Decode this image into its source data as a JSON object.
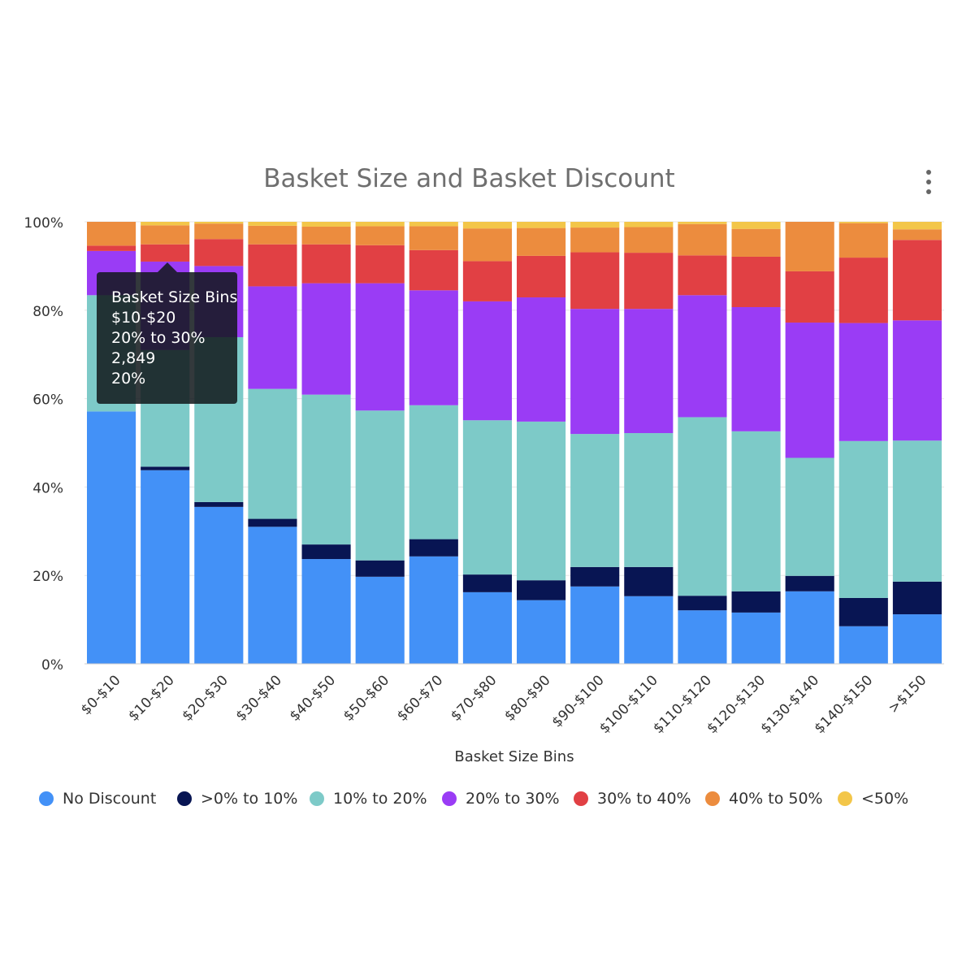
{
  "chart_data": {
    "type": "bar",
    "stacked": "percent",
    "title": "Basket Size and Basket Discount",
    "xlabel": "Basket Size Bins",
    "ylabel": "",
    "ylim": [
      0,
      100
    ],
    "y_ticks": [
      "0%",
      "20%",
      "40%",
      "60%",
      "80%",
      "100%"
    ],
    "grid": true,
    "legend_position": "bottom",
    "categories": [
      "$0-$10",
      "$10-$20",
      "$20-$30",
      "$30-$40",
      "$40-$50",
      "$50-$60",
      "$60-$70",
      "$70-$80",
      "$80-$90",
      "$90-$100",
      "$100-$110",
      "$110-$120",
      "$120-$130",
      "$130-$140",
      "$140-$150",
      ">$150"
    ],
    "series": [
      {
        "name": "No Discount",
        "color": "#4391f7",
        "values": [
          57.1,
          43.8,
          35.5,
          31.0,
          23.7,
          19.7,
          24.3,
          16.2,
          14.4,
          17.5,
          15.3,
          12.1,
          11.6,
          16.4,
          8.5,
          11.2
        ]
      },
      {
        "name": ">0% to 10%",
        "color": "#081553",
        "values": [
          0.0,
          0.8,
          1.1,
          1.8,
          3.3,
          3.7,
          3.9,
          4.0,
          4.5,
          4.4,
          6.6,
          3.3,
          4.8,
          3.5,
          6.4,
          7.4
        ]
      },
      {
        "name": "10% to 20%",
        "color": "#7dcac8",
        "values": [
          26.3,
          26.4,
          37.3,
          29.4,
          33.9,
          33.9,
          30.3,
          34.9,
          35.9,
          30.1,
          30.3,
          40.4,
          36.2,
          26.7,
          35.5,
          31.9
        ]
      },
      {
        "name": "20% to 30%",
        "color": "#9a3cf5",
        "values": [
          10.0,
          20.0,
          16.1,
          23.2,
          25.2,
          28.8,
          26.0,
          26.9,
          28.1,
          28.3,
          28.1,
          27.6,
          28.1,
          30.6,
          26.7,
          27.2
        ]
      },
      {
        "name": "30% to 40%",
        "color": "#e14044",
        "values": [
          1.2,
          3.9,
          6.1,
          9.5,
          8.8,
          8.6,
          9.1,
          9.1,
          9.4,
          12.8,
          12.7,
          9.0,
          11.4,
          11.6,
          14.8,
          18.2
        ]
      },
      {
        "name": "40% to 50%",
        "color": "#ec8c3e",
        "values": [
          5.4,
          4.3,
          3.5,
          4.2,
          4.0,
          4.3,
          5.4,
          7.4,
          6.3,
          5.6,
          5.8,
          7.1,
          6.3,
          11.2,
          7.8,
          2.4
        ]
      },
      {
        "name": "<50%",
        "color": "#f3c649",
        "values": [
          0.0,
          0.8,
          0.4,
          0.9,
          1.1,
          1.0,
          1.0,
          1.5,
          1.4,
          1.3,
          1.2,
          0.5,
          1.6,
          0.0,
          0.3,
          1.7
        ]
      }
    ]
  },
  "tooltip": {
    "heading": "Basket Size Bins",
    "category": "$10-$20",
    "series": "20% to 30%",
    "count": "2,849",
    "percent": "20%"
  },
  "menu": {
    "icon": "more-vertical-icon"
  }
}
